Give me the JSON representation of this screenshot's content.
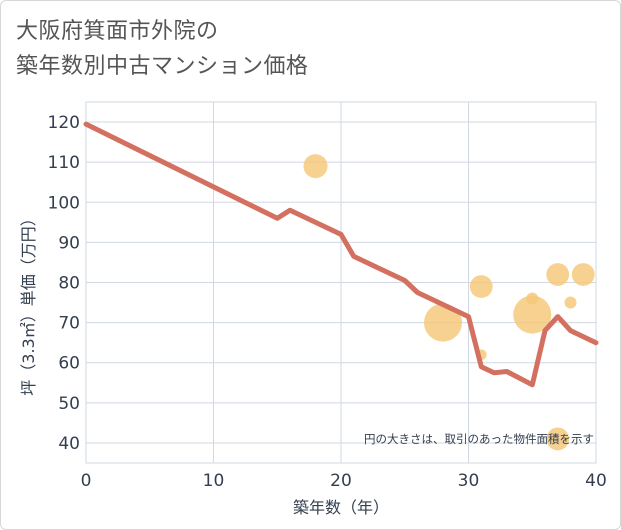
{
  "chart_data": {
    "type": "scatter",
    "title_lines": [
      "大阪府箕面市外院の",
      "築年数別中古マンション価格"
    ],
    "xlabel": "築年数（年）",
    "ylabel": "坪（3.3㎡）単価（万円）",
    "xlim": [
      0,
      40
    ],
    "ylim": [
      35,
      125
    ],
    "x_ticks": [
      0,
      10,
      20,
      30,
      40
    ],
    "y_ticks": [
      40,
      50,
      60,
      70,
      80,
      90,
      100,
      110,
      120
    ],
    "grid": true,
    "note": "円の大きさは、取引のあった物件面積を示す",
    "colors": {
      "line": "#d4705f",
      "bubble": "#f5c778",
      "grid": "#cfd8e3",
      "text": "#333f4f"
    },
    "series": [
      {
        "name": "trend",
        "kind": "line",
        "x": [
          0,
          15,
          16,
          20,
          21,
          25,
          26,
          30,
          31,
          32,
          33,
          35,
          36,
          37,
          38,
          40
        ],
        "y": [
          119.5,
          96,
          98,
          92,
          86.5,
          80.5,
          77.5,
          71.5,
          59,
          57.5,
          57.8,
          54.5,
          68,
          71.5,
          68,
          65
        ]
      },
      {
        "name": "transactions",
        "kind": "bubble",
        "points": [
          {
            "x": 18,
            "y": 109,
            "size": 2
          },
          {
            "x": 28,
            "y": 70,
            "size": 5
          },
          {
            "x": 31,
            "y": 79,
            "size": 1.8
          },
          {
            "x": 31,
            "y": 62,
            "size": 0.4
          },
          {
            "x": 35,
            "y": 72,
            "size": 5
          },
          {
            "x": 35,
            "y": 76,
            "size": 0.5
          },
          {
            "x": 37,
            "y": 82,
            "size": 1.8
          },
          {
            "x": 37,
            "y": 41,
            "size": 1.8
          },
          {
            "x": 38,
            "y": 75,
            "size": 0.5
          },
          {
            "x": 39,
            "y": 82,
            "size": 1.8
          }
        ]
      }
    ]
  }
}
